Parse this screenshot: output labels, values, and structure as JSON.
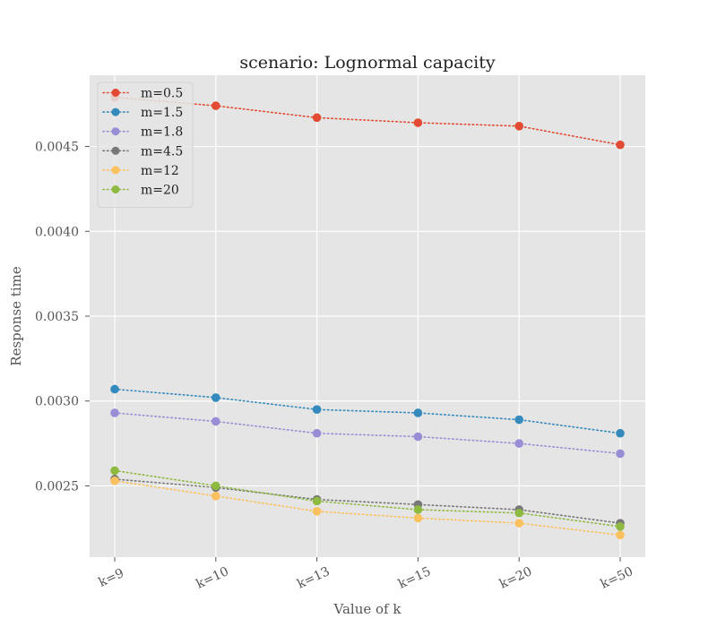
{
  "chart_data": {
    "type": "line",
    "title": "scenario: Lognormal capacity",
    "xlabel": "Value of k",
    "ylabel": "Response time",
    "categories": [
      "k=9",
      "k=10",
      "k=13",
      "k=15",
      "k=20",
      "k=50"
    ],
    "ylim": [
      0.00208,
      0.00492
    ],
    "yticks": [
      0.0025,
      0.003,
      0.0035,
      0.004,
      0.0045
    ],
    "ytick_labels": [
      "0.0025",
      "0.0030",
      "0.0035",
      "0.0040",
      "0.0045"
    ],
    "grid": true,
    "legend_position": "top-left",
    "series": [
      {
        "name": "m=0.5",
        "color": "#E24A33",
        "values": [
          0.00479,
          0.00474,
          0.00467,
          0.00464,
          0.00462,
          0.00451
        ]
      },
      {
        "name": "m=1.5",
        "color": "#348ABD",
        "values": [
          0.00307,
          0.00302,
          0.00295,
          0.00293,
          0.00289,
          0.00281
        ]
      },
      {
        "name": "m=1.8",
        "color": "#988ED5",
        "values": [
          0.00293,
          0.00288,
          0.00281,
          0.00279,
          0.00275,
          0.00269
        ]
      },
      {
        "name": "m=4.5",
        "color": "#777777",
        "values": [
          0.00254,
          0.00249,
          0.00242,
          0.00239,
          0.00236,
          0.00228
        ]
      },
      {
        "name": "m=12",
        "color": "#FBC15E",
        "values": [
          0.00253,
          0.00244,
          0.00235,
          0.00231,
          0.00228,
          0.00221
        ]
      },
      {
        "name": "m=20",
        "color": "#8EBA42",
        "values": [
          0.00259,
          0.0025,
          0.00241,
          0.00236,
          0.00234,
          0.00226
        ]
      }
    ]
  }
}
